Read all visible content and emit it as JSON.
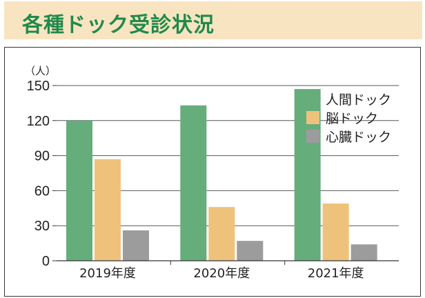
{
  "header": {
    "title": "各種ドック受診状況"
  },
  "chart_data": {
    "type": "bar",
    "title": "",
    "ylabel": "（人）",
    "xlabel": "",
    "categories": [
      "2019年度",
      "2020年度",
      "2021年度"
    ],
    "series": [
      {
        "name": "人間ドック",
        "values": [
          120,
          133,
          147
        ],
        "color": "#65ad7b"
      },
      {
        "name": "脳ドック",
        "values": [
          87,
          46,
          49
        ],
        "color": "#efc27c"
      },
      {
        "name": "心臓ドック",
        "values": [
          26,
          17,
          14
        ],
        "color": "#9c9c9c"
      }
    ],
    "ylim": [
      0,
      150
    ],
    "yticks": [
      "0",
      "30",
      "60",
      "90",
      "120",
      "150"
    ],
    "grid": true,
    "legend_position": "top-right"
  }
}
